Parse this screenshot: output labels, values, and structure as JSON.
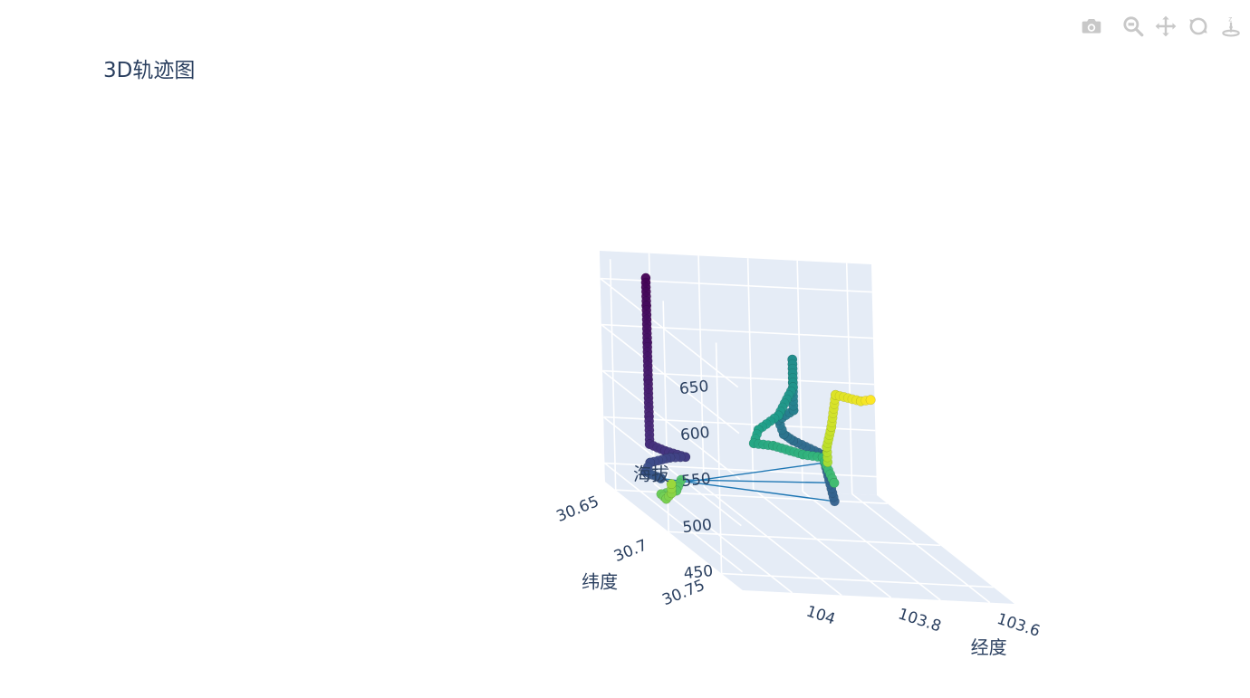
{
  "title": "3D轨迹图",
  "modebar": {
    "icons": [
      "camera-icon",
      "zoom-icon",
      "pan-icon",
      "orbit-rotation-icon",
      "turntable-rotation-icon"
    ]
  },
  "colors": {
    "pane": "#e5ecf6",
    "grid": "#ffffff",
    "text": "#2a3f5f",
    "line": "#1f77b4",
    "icon": "#c8c8c8"
  },
  "chart_data": {
    "type": "scatter3d",
    "mode": "lines+markers",
    "colorscale": "Viridis",
    "axes": {
      "x": {
        "label": "经度",
        "ticks": [
          "103.6",
          "103.8",
          "104"
        ]
      },
      "y": {
        "label": "纬度",
        "ticks": [
          "30.65",
          "30.7",
          "30.75"
        ]
      },
      "z": {
        "label": "海拔",
        "ticks": [
          "450",
          "500",
          "550",
          "600",
          "650"
        ],
        "range": [
          430,
          680
        ]
      }
    },
    "trajectory": [
      {
        "lon": 104.05,
        "lat": 30.66,
        "alt": 670
      },
      {
        "lon": 104.05,
        "lat": 30.66,
        "alt": 640
      },
      {
        "lon": 104.05,
        "lat": 30.66,
        "alt": 600
      },
      {
        "lon": 104.05,
        "lat": 30.66,
        "alt": 560
      },
      {
        "lon": 104.05,
        "lat": 30.66,
        "alt": 520
      },
      {
        "lon": 104.05,
        "lat": 30.66,
        "alt": 490
      },
      {
        "lon": 104.04,
        "lat": 30.67,
        "alt": 492
      },
      {
        "lon": 104.02,
        "lat": 30.68,
        "alt": 495
      },
      {
        "lon": 104.03,
        "lat": 30.67,
        "alt": 485
      },
      {
        "lon": 104.05,
        "lat": 30.66,
        "alt": 470
      },
      {
        "lon": 104.06,
        "lat": 30.66,
        "alt": 460
      },
      {
        "lon": 104.05,
        "lat": 30.67,
        "alt": 462
      },
      {
        "lon": 103.72,
        "lat": 30.68,
        "alt": 455
      },
      {
        "lon": 103.7,
        "lat": 30.66,
        "alt": 488
      },
      {
        "lon": 103.78,
        "lat": 30.67,
        "alt": 510
      },
      {
        "lon": 103.82,
        "lat": 30.68,
        "alt": 525
      },
      {
        "lon": 103.83,
        "lat": 30.68,
        "alt": 540
      },
      {
        "lon": 103.82,
        "lat": 30.69,
        "alt": 560
      },
      {
        "lon": 103.82,
        "lat": 30.69,
        "alt": 590
      },
      {
        "lon": 103.82,
        "lat": 30.69,
        "alt": 615
      },
      {
        "lon": 103.82,
        "lat": 30.69,
        "alt": 585
      },
      {
        "lon": 103.83,
        "lat": 30.68,
        "alt": 545
      },
      {
        "lon": 103.85,
        "lat": 30.67,
        "alt": 520
      },
      {
        "lon": 103.86,
        "lat": 30.67,
        "alt": 505
      },
      {
        "lon": 103.8,
        "lat": 30.66,
        "alt": 495
      },
      {
        "lon": 103.74,
        "lat": 30.66,
        "alt": 487
      },
      {
        "lon": 103.7,
        "lat": 30.66,
        "alt": 485
      },
      {
        "lon": 103.72,
        "lat": 30.68,
        "alt": 475
      },
      {
        "lon": 104.03,
        "lat": 30.68,
        "alt": 470
      },
      {
        "lon": 104.04,
        "lat": 30.68,
        "alt": 458
      },
      {
        "lon": 104.05,
        "lat": 30.67,
        "alt": 445
      },
      {
        "lon": 104.04,
        "lat": 30.67,
        "alt": 440
      },
      {
        "lon": 104.05,
        "lat": 30.68,
        "alt": 455
      },
      {
        "lon": 104.05,
        "lat": 30.68,
        "alt": 465
      },
      {
        "lon": 103.69,
        "lat": 30.66,
        "alt": 480
      },
      {
        "lon": 103.67,
        "lat": 30.65,
        "alt": 488
      },
      {
        "lon": 103.66,
        "lat": 30.65,
        "alt": 510
      },
      {
        "lon": 103.65,
        "lat": 30.65,
        "alt": 545
      },
      {
        "lon": 103.62,
        "lat": 30.66,
        "alt": 548
      },
      {
        "lon": 103.6,
        "lat": 30.66,
        "alt": 550
      }
    ]
  }
}
